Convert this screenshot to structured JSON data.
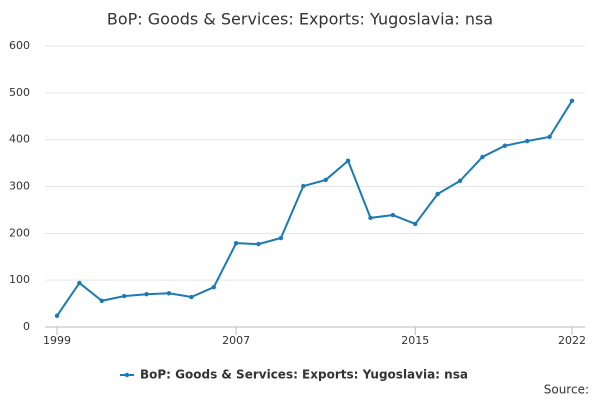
{
  "chart_data": {
    "type": "line",
    "title": "BoP: Goods & Services: Exports: Yugoslavia: nsa",
    "x": [
      1999,
      2000,
      2001,
      2002,
      2003,
      2004,
      2005,
      2006,
      2007,
      2008,
      2009,
      2010,
      2011,
      2012,
      2013,
      2014,
      2015,
      2016,
      2017,
      2018,
      2019,
      2020,
      2021,
      2022
    ],
    "series": [
      {
        "name": "BoP: Goods & Services: Exports: Yugoslavia: nsa",
        "color": "#1a7ab5",
        "values": [
          24,
          94,
          56,
          66,
          70,
          72,
          64,
          85,
          179,
          177,
          190,
          301,
          314,
          355,
          233,
          239,
          220,
          284,
          312,
          363,
          387,
          397,
          406,
          483
        ]
      }
    ],
    "xlim": [
      1999,
      2022
    ],
    "xticks": [
      1999,
      2007,
      2015,
      2022
    ],
    "ylim": [
      0,
      600
    ],
    "yticks": [
      0,
      100,
      200,
      300,
      400,
      500,
      600
    ],
    "grid": true,
    "legend": "bottom",
    "source": "Source:"
  }
}
